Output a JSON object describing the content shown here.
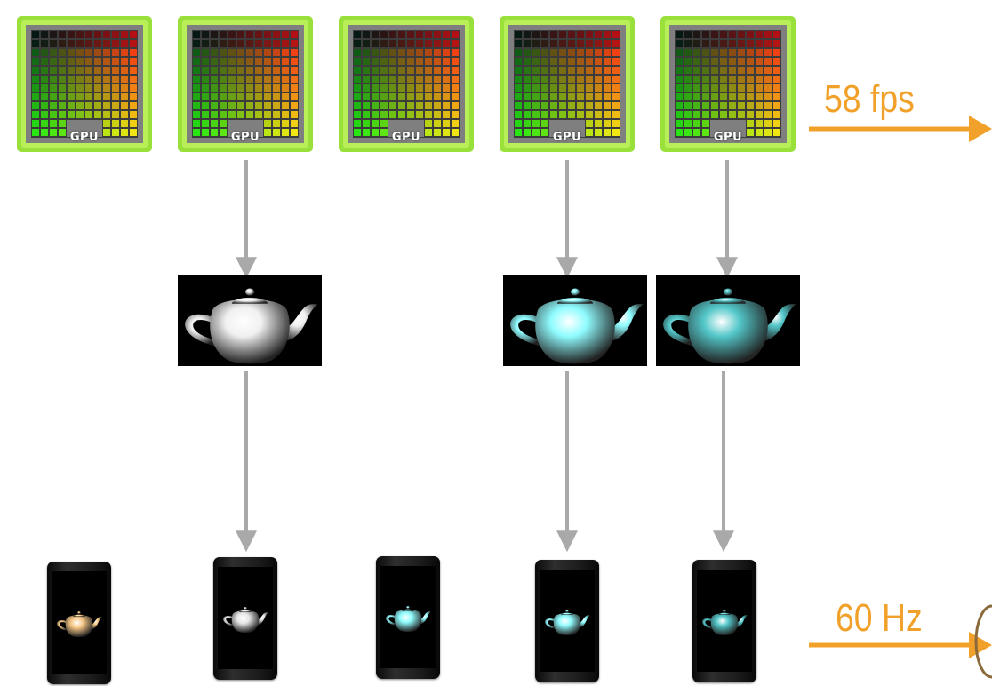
{
  "gpu_label": "GPU",
  "gpu_count": 5,
  "display_count": 5,
  "render_rate_label": "58 fps",
  "refresh_rate_label": "60 Hz",
  "frames": [
    {
      "teapot_color": "#f0f0f0"
    },
    {
      "teapot_color": "#8ffcff"
    },
    {
      "teapot_color": "#53c7c9"
    }
  ],
  "displays": [
    {
      "teapot_color": "#f6c684"
    },
    {
      "teapot_color": "#e6e6e6"
    },
    {
      "teapot_color": "#8ffcff"
    },
    {
      "teapot_color": "#8ffcff"
    },
    {
      "teapot_color": "#53c7c9"
    }
  ],
  "colors": {
    "arrow_gray": "#a9a9a9",
    "accent_orange": "#f1a12a",
    "gpu_border": "#9ae03a",
    "gpu_frame": "#7f7f7f"
  }
}
